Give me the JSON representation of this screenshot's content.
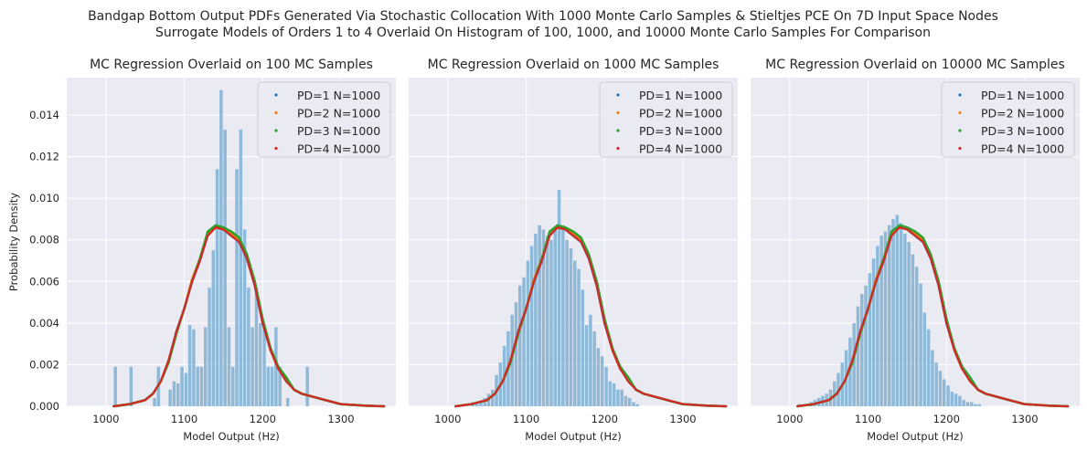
{
  "suptitle": [
    "Bandgap Bottom Output PDFs Generated Via Stochastic Collocation With 1000 Monte Carlo Samples & Stieltjes PCE On 7D Input Space Nodes",
    "Surrogate Models of Orders 1 to 4 Overlaid On Histogram of 100, 1000, and 10000 Monte Carlo Samples For Comparison"
  ],
  "colors": {
    "axes_bg": "#eaeaf2",
    "grid": "#ffffff",
    "hist": "#7eb0d5",
    "pd1": "#1f77b4",
    "pd2": "#ff7f0e",
    "pd3": "#2ca02c",
    "pd4": "#d62728"
  },
  "chart_data": [
    {
      "type": "line",
      "title": "MC Regression Overlaid on 100 MC Samples",
      "xlabel": "Model Output (Hz)",
      "ylabel": "Probability Density",
      "xlim": [
        950,
        1370
      ],
      "ylim": [
        0,
        0.0158
      ],
      "xticks": [
        1000,
        1100,
        1200,
        1300
      ],
      "yticks": [
        "0.000",
        "0.002",
        "0.004",
        "0.006",
        "0.008",
        "0.010",
        "0.012",
        "0.014"
      ],
      "legend": [
        "PD=1 N=1000",
        "PD=2 N=1000",
        "PD=3 N=1000",
        "PD=4 N=1000"
      ],
      "legend_position": "top-right",
      "grid": true,
      "histogram": {
        "bin_start": 1010,
        "bin_width": 5,
        "densities": [
          0.0019,
          0,
          0,
          0,
          0.0019,
          0,
          0,
          0,
          0,
          0,
          0.0004,
          0.0019,
          0,
          0,
          0.0008,
          0.0012,
          0.0011,
          0.0019,
          0.0016,
          0.0039,
          0.0037,
          0.0019,
          0.0019,
          0.0038,
          0.0057,
          0.0075,
          0.0114,
          0.0152,
          0.0133,
          0.0038,
          0.0019,
          0.0114,
          0.0133,
          0.0085,
          0.0057,
          0.0038,
          0.0057,
          0.004,
          0.0038,
          0.0019,
          0.0019,
          0.0038,
          0.0019,
          0,
          0.0004,
          0,
          0,
          0,
          0,
          0.0019,
          0,
          0,
          0
        ]
      },
      "series": [
        {
          "name": "PD=1 N=1000",
          "x": [
            1010,
            1030,
            1050,
            1060,
            1070,
            1080,
            1090,
            1100,
            1110,
            1120,
            1130,
            1140,
            1150,
            1160,
            1170,
            1180,
            1190,
            1200,
            1210,
            1220,
            1230,
            1240,
            1250,
            1260,
            1280,
            1300,
            1330,
            1355
          ],
          "y": [
            0,
            0.0001,
            0.0003,
            0.0006,
            0.0012,
            0.0022,
            0.0036,
            0.0047,
            0.006,
            0.007,
            0.0083,
            0.0086,
            0.0085,
            0.0082,
            0.0079,
            0.0071,
            0.0058,
            0.004,
            0.0027,
            0.0018,
            0.0013,
            0.0008,
            0.0006,
            0.0005,
            0.0003,
            0.0001,
            3e-05,
            0
          ]
        },
        {
          "name": "PD=2 N=1000",
          "x": [
            1010,
            1030,
            1050,
            1060,
            1070,
            1080,
            1090,
            1100,
            1110,
            1120,
            1130,
            1140,
            1150,
            1160,
            1170,
            1180,
            1190,
            1200,
            1210,
            1220,
            1230,
            1240,
            1250,
            1260,
            1280,
            1300,
            1330,
            1355
          ],
          "y": [
            0,
            0.0001,
            0.0003,
            0.0006,
            0.0012,
            0.0022,
            0.0035,
            0.0047,
            0.0061,
            0.0071,
            0.0083,
            0.0086,
            0.0085,
            0.0083,
            0.008,
            0.0072,
            0.0059,
            0.0041,
            0.0027,
            0.0018,
            0.0013,
            0.0008,
            0.0006,
            0.0005,
            0.0003,
            0.0001,
            3e-05,
            0
          ]
        },
        {
          "name": "PD=3 N=1000",
          "x": [
            1010,
            1030,
            1050,
            1060,
            1070,
            1080,
            1090,
            1100,
            1110,
            1120,
            1130,
            1140,
            1150,
            1160,
            1170,
            1180,
            1190,
            1200,
            1210,
            1220,
            1230,
            1240,
            1250,
            1260,
            1280,
            1300,
            1330,
            1355
          ],
          "y": [
            0,
            0.0001,
            0.0003,
            0.0006,
            0.0012,
            0.0021,
            0.0035,
            0.0047,
            0.006,
            0.0071,
            0.0084,
            0.0087,
            0.0086,
            0.0084,
            0.0081,
            0.0073,
            0.006,
            0.0042,
            0.0028,
            0.0019,
            0.0014,
            0.0008,
            0.0006,
            0.0005,
            0.0003,
            0.0001,
            3e-05,
            0
          ]
        },
        {
          "name": "PD=4 N=1000",
          "x": [
            1010,
            1030,
            1050,
            1060,
            1070,
            1080,
            1090,
            1100,
            1110,
            1120,
            1130,
            1140,
            1150,
            1160,
            1170,
            1180,
            1190,
            1200,
            1210,
            1220,
            1230,
            1240,
            1250,
            1260,
            1280,
            1300,
            1330,
            1355
          ],
          "y": [
            0,
            0.0001,
            0.0003,
            0.0006,
            0.0012,
            0.0022,
            0.0036,
            0.0047,
            0.006,
            0.007,
            0.0082,
            0.0086,
            0.0085,
            0.0082,
            0.0079,
            0.0071,
            0.0058,
            0.004,
            0.0027,
            0.0018,
            0.0012,
            0.0008,
            0.0006,
            0.0005,
            0.0003,
            0.0001,
            3e-05,
            0
          ]
        }
      ]
    },
    {
      "type": "line",
      "title": "MC Regression Overlaid on 1000 MC Samples",
      "xlabel": "Model Output (Hz)",
      "xlim": [
        950,
        1370
      ],
      "ylim": [
        0,
        0.0158
      ],
      "xticks": [
        1000,
        1100,
        1200,
        1300
      ],
      "legend": [
        "PD=1 N=1000",
        "PD=2 N=1000",
        "PD=3 N=1000",
        "PD=4 N=1000"
      ],
      "legend_position": "top-right",
      "grid": true,
      "histogram": {
        "bin_start": 1015,
        "bin_width": 5,
        "densities": [
          0,
          0,
          0,
          0.0002,
          0.0002,
          0.0002,
          0.0004,
          0.0006,
          0.0008,
          0.0015,
          0.0021,
          0.0029,
          0.0036,
          0.0044,
          0.005,
          0.0058,
          0.0062,
          0.007,
          0.0077,
          0.0083,
          0.0087,
          0.0085,
          0.0082,
          0.008,
          0.0085,
          0.0104,
          0.0087,
          0.008,
          0.0076,
          0.007,
          0.0066,
          0.0056,
          0.0039,
          0.0044,
          0.0036,
          0.0028,
          0.0024,
          0.0019,
          0.0012,
          0.0011,
          0.0008,
          0.0008,
          0.0005,
          0.0004,
          0.0002,
          0.0001
        ]
      },
      "series": [
        {
          "name": "PD=1 N=1000",
          "x": [
            1010,
            1030,
            1050,
            1060,
            1070,
            1080,
            1090,
            1100,
            1110,
            1120,
            1130,
            1140,
            1150,
            1160,
            1170,
            1180,
            1190,
            1200,
            1210,
            1220,
            1230,
            1240,
            1250,
            1260,
            1280,
            1300,
            1330,
            1355
          ],
          "y": [
            0,
            0.0001,
            0.0003,
            0.0006,
            0.0012,
            0.0022,
            0.0036,
            0.0047,
            0.006,
            0.007,
            0.0083,
            0.0086,
            0.0085,
            0.0082,
            0.0079,
            0.0071,
            0.0058,
            0.004,
            0.0027,
            0.0018,
            0.0013,
            0.0008,
            0.0006,
            0.0005,
            0.0003,
            0.0001,
            3e-05,
            0
          ]
        },
        {
          "name": "PD=2 N=1000",
          "x": [
            1010,
            1030,
            1050,
            1060,
            1070,
            1080,
            1090,
            1100,
            1110,
            1120,
            1130,
            1140,
            1150,
            1160,
            1170,
            1180,
            1190,
            1200,
            1210,
            1220,
            1230,
            1240,
            1250,
            1260,
            1280,
            1300,
            1330,
            1355
          ],
          "y": [
            0,
            0.0001,
            0.0003,
            0.0006,
            0.0012,
            0.0022,
            0.0035,
            0.0047,
            0.0061,
            0.0071,
            0.0083,
            0.0086,
            0.0085,
            0.0083,
            0.008,
            0.0072,
            0.0059,
            0.0041,
            0.0027,
            0.0018,
            0.0013,
            0.0008,
            0.0006,
            0.0005,
            0.0003,
            0.0001,
            3e-05,
            0
          ]
        },
        {
          "name": "PD=3 N=1000",
          "x": [
            1010,
            1030,
            1050,
            1060,
            1070,
            1080,
            1090,
            1100,
            1110,
            1120,
            1130,
            1140,
            1150,
            1160,
            1170,
            1180,
            1190,
            1200,
            1210,
            1220,
            1230,
            1240,
            1250,
            1260,
            1280,
            1300,
            1330,
            1355
          ],
          "y": [
            0,
            0.0001,
            0.0003,
            0.0006,
            0.0012,
            0.0021,
            0.0035,
            0.0047,
            0.006,
            0.0071,
            0.0084,
            0.0087,
            0.0086,
            0.0084,
            0.0081,
            0.0073,
            0.006,
            0.0042,
            0.0028,
            0.0019,
            0.0014,
            0.0008,
            0.0006,
            0.0005,
            0.0003,
            0.0001,
            3e-05,
            0
          ]
        },
        {
          "name": "PD=4 N=1000",
          "x": [
            1010,
            1030,
            1050,
            1060,
            1070,
            1080,
            1090,
            1100,
            1110,
            1120,
            1130,
            1140,
            1150,
            1160,
            1170,
            1180,
            1190,
            1200,
            1210,
            1220,
            1230,
            1240,
            1250,
            1260,
            1280,
            1300,
            1330,
            1355
          ],
          "y": [
            0,
            0.0001,
            0.0003,
            0.0006,
            0.0012,
            0.0022,
            0.0036,
            0.0047,
            0.006,
            0.007,
            0.0082,
            0.0086,
            0.0085,
            0.0082,
            0.0079,
            0.0071,
            0.0058,
            0.004,
            0.0027,
            0.0018,
            0.0012,
            0.0008,
            0.0006,
            0.0005,
            0.0003,
            0.0001,
            3e-05,
            0
          ]
        }
      ]
    },
    {
      "type": "line",
      "title": "MC Regression Overlaid on 10000 MC Samples",
      "xlabel": "Model Output (Hz)",
      "xlim": [
        950,
        1370
      ],
      "ylim": [
        0,
        0.0158
      ],
      "xticks": [
        1000,
        1100,
        1200,
        1300
      ],
      "legend": [
        "PD=1 N=1000",
        "PD=2 N=1000",
        "PD=3 N=1000",
        "PD=4 N=1000"
      ],
      "legend_position": "top-right",
      "grid": true,
      "histogram": {
        "bin_start": 1010,
        "bin_width": 5,
        "densities": [
          0.0001,
          0.0001,
          0.0001,
          0.0002,
          0.0003,
          0.0004,
          0.0005,
          0.0006,
          0.0008,
          0.0012,
          0.0016,
          0.0021,
          0.0027,
          0.0033,
          0.004,
          0.0048,
          0.0054,
          0.0058,
          0.0064,
          0.0071,
          0.0077,
          0.0082,
          0.0084,
          0.0087,
          0.009,
          0.0092,
          0.0088,
          0.0083,
          0.0079,
          0.0073,
          0.0067,
          0.0059,
          0.0045,
          0.0037,
          0.0027,
          0.0021,
          0.0017,
          0.0013,
          0.001,
          0.0007,
          0.0006,
          0.0005,
          0.0003,
          0.0002,
          0.0002,
          0.0001,
          0.0001
        ]
      },
      "series": [
        {
          "name": "PD=1 N=1000",
          "x": [
            1010,
            1030,
            1050,
            1060,
            1070,
            1080,
            1090,
            1100,
            1110,
            1120,
            1130,
            1140,
            1150,
            1160,
            1170,
            1180,
            1190,
            1200,
            1210,
            1220,
            1230,
            1240,
            1250,
            1260,
            1280,
            1300,
            1330,
            1355
          ],
          "y": [
            0,
            0.0001,
            0.0003,
            0.0006,
            0.0012,
            0.0022,
            0.0036,
            0.0047,
            0.006,
            0.007,
            0.0083,
            0.0086,
            0.0085,
            0.0082,
            0.0079,
            0.0071,
            0.0058,
            0.004,
            0.0027,
            0.0018,
            0.0013,
            0.0008,
            0.0006,
            0.0005,
            0.0003,
            0.0001,
            3e-05,
            0
          ]
        },
        {
          "name": "PD=2 N=1000",
          "x": [
            1010,
            1030,
            1050,
            1060,
            1070,
            1080,
            1090,
            1100,
            1110,
            1120,
            1130,
            1140,
            1150,
            1160,
            1170,
            1180,
            1190,
            1200,
            1210,
            1220,
            1230,
            1240,
            1250,
            1260,
            1280,
            1300,
            1330,
            1355
          ],
          "y": [
            0,
            0.0001,
            0.0003,
            0.0006,
            0.0012,
            0.0022,
            0.0035,
            0.0047,
            0.0061,
            0.0071,
            0.0083,
            0.0086,
            0.0085,
            0.0083,
            0.008,
            0.0072,
            0.0059,
            0.0041,
            0.0027,
            0.0018,
            0.0013,
            0.0008,
            0.0006,
            0.0005,
            0.0003,
            0.0001,
            3e-05,
            0
          ]
        },
        {
          "name": "PD=3 N=1000",
          "x": [
            1010,
            1030,
            1050,
            1060,
            1070,
            1080,
            1090,
            1100,
            1110,
            1120,
            1130,
            1140,
            1150,
            1160,
            1170,
            1180,
            1190,
            1200,
            1210,
            1220,
            1230,
            1240,
            1250,
            1260,
            1280,
            1300,
            1330,
            1355
          ],
          "y": [
            0,
            0.0001,
            0.0003,
            0.0006,
            0.0012,
            0.0021,
            0.0035,
            0.0047,
            0.006,
            0.0071,
            0.0084,
            0.0087,
            0.0086,
            0.0084,
            0.0081,
            0.0073,
            0.006,
            0.0042,
            0.0028,
            0.0019,
            0.0014,
            0.0008,
            0.0006,
            0.0005,
            0.0003,
            0.0001,
            3e-05,
            0
          ]
        },
        {
          "name": "PD=4 N=1000",
          "x": [
            1010,
            1030,
            1050,
            1060,
            1070,
            1080,
            1090,
            1100,
            1110,
            1120,
            1130,
            1140,
            1150,
            1160,
            1170,
            1180,
            1190,
            1200,
            1210,
            1220,
            1230,
            1240,
            1250,
            1260,
            1280,
            1300,
            1330,
            1355
          ],
          "y": [
            0,
            0.0001,
            0.0003,
            0.0006,
            0.0012,
            0.0022,
            0.0036,
            0.0047,
            0.006,
            0.007,
            0.0082,
            0.0086,
            0.0085,
            0.0082,
            0.0079,
            0.0071,
            0.0058,
            0.004,
            0.0027,
            0.0018,
            0.0012,
            0.0008,
            0.0006,
            0.0005,
            0.0003,
            0.0001,
            3e-05,
            0
          ]
        }
      ]
    }
  ]
}
